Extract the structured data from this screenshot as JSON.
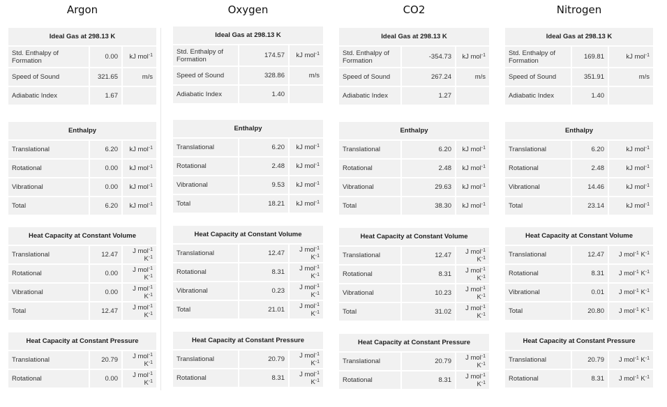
{
  "columns": [
    {
      "name": "Argon",
      "ideal_gas": {
        "title": "Ideal Gas at 298.13 K",
        "rows": [
          {
            "label": "Std. Enthalpy of Formation",
            "value": "0.00",
            "unit": "kJ mol",
            "unit_sup": "-1"
          },
          {
            "label": "Speed of Sound",
            "value": "321.65",
            "unit": "m/s"
          },
          {
            "label": "Adiabatic Index",
            "value": "1.67",
            "unit": ""
          }
        ]
      },
      "enthalpy": {
        "title": "Enthalpy",
        "rows": [
          {
            "label": "Translational",
            "value": "6.20"
          },
          {
            "label": "Rotational",
            "value": "0.00"
          },
          {
            "label": "Vibrational",
            "value": "0.00"
          },
          {
            "label": "Total",
            "value": "6.20"
          }
        ]
      },
      "cv": {
        "title": "Heat Capacity at Constant Volume",
        "rows": [
          {
            "label": "Translational",
            "value": "12.47"
          },
          {
            "label": "Rotational",
            "value": "0.00"
          },
          {
            "label": "Vibrational",
            "value": "0.00"
          },
          {
            "label": "Total",
            "value": "12.47"
          }
        ]
      },
      "cp": {
        "title": "Heat Capacity at Constant Pressure",
        "rows": [
          {
            "label": "Translational",
            "value": "20.79"
          },
          {
            "label": "Rotational",
            "value": "0.00"
          }
        ]
      }
    },
    {
      "name": "Oxygen",
      "ideal_gas": {
        "title": "Ideal Gas at 298.13 K",
        "rows": [
          {
            "label": "Std. Enthalpy of Formation",
            "value": "174.57",
            "unit": "kJ mol",
            "unit_sup": "-1"
          },
          {
            "label": "Speed of Sound",
            "value": "328.86",
            "unit": "m/s"
          },
          {
            "label": "Adiabatic Index",
            "value": "1.40",
            "unit": ""
          }
        ]
      },
      "enthalpy": {
        "title": "Enthalpy",
        "rows": [
          {
            "label": "Translational",
            "value": "6.20"
          },
          {
            "label": "Rotational",
            "value": "2.48"
          },
          {
            "label": "Vibrational",
            "value": "9.53"
          },
          {
            "label": "Total",
            "value": "18.21"
          }
        ]
      },
      "cv": {
        "title": "Heat Capacity at Constant Volume",
        "rows": [
          {
            "label": "Translational",
            "value": "12.47"
          },
          {
            "label": "Rotational",
            "value": "8.31"
          },
          {
            "label": "Vibrational",
            "value": "0.23"
          },
          {
            "label": "Total",
            "value": "21.01"
          }
        ]
      },
      "cp": {
        "title": "Heat Capacity at Constant Pressure",
        "rows": [
          {
            "label": "Translational",
            "value": "20.79"
          },
          {
            "label": "Rotational",
            "value": "8.31"
          }
        ]
      }
    },
    {
      "name": "CO2",
      "ideal_gas": {
        "title": "Ideal Gas at 298.13 K",
        "rows": [
          {
            "label": "Std. Enthalpy of Formation",
            "value": "-354.73",
            "unit": "kJ mol",
            "unit_sup": "-1"
          },
          {
            "label": "Speed of Sound",
            "value": "267.24",
            "unit": "m/s"
          },
          {
            "label": "Adiabatic Index",
            "value": "1.27",
            "unit": ""
          }
        ]
      },
      "enthalpy": {
        "title": "Enthalpy",
        "rows": [
          {
            "label": "Translational",
            "value": "6.20"
          },
          {
            "label": "Rotational",
            "value": "2.48"
          },
          {
            "label": "Vibrational",
            "value": "29.63"
          },
          {
            "label": "Total",
            "value": "38.30"
          }
        ]
      },
      "cv": {
        "title": "Heat Capacity at Constant Volume",
        "rows": [
          {
            "label": "Translational",
            "value": "12.47"
          },
          {
            "label": "Rotational",
            "value": "8.31"
          },
          {
            "label": "Vibrational",
            "value": "10.23"
          },
          {
            "label": "Total",
            "value": "31.02"
          }
        ]
      },
      "cp": {
        "title": "Heat Capacity at Constant Pressure",
        "rows": [
          {
            "label": "Translational",
            "value": "20.79"
          },
          {
            "label": "Rotational",
            "value": "8.31"
          }
        ]
      }
    },
    {
      "name": "Nitrogen",
      "ideal_gas": {
        "title": "Ideal Gas at 298.13 K",
        "rows": [
          {
            "label": "Std. Enthalpy of Formation",
            "value": "169.81",
            "unit": "kJ mol",
            "unit_sup": "-1"
          },
          {
            "label": "Speed of Sound",
            "value": "351.91",
            "unit": "m/s"
          },
          {
            "label": "Adiabatic Index",
            "value": "1.40",
            "unit": ""
          }
        ]
      },
      "enthalpy": {
        "title": "Enthalpy",
        "rows": [
          {
            "label": "Translational",
            "value": "6.20"
          },
          {
            "label": "Rotational",
            "value": "2.48"
          },
          {
            "label": "Vibrational",
            "value": "14.46"
          },
          {
            "label": "Total",
            "value": "23.14"
          }
        ]
      },
      "cv": {
        "title": "Heat Capacity at Constant Volume",
        "rows": [
          {
            "label": "Translational",
            "value": "12.47"
          },
          {
            "label": "Rotational",
            "value": "8.31"
          },
          {
            "label": "Vibrational",
            "value": "0.01"
          },
          {
            "label": "Total",
            "value": "20.80"
          }
        ]
      },
      "cp": {
        "title": "Heat Capacity at Constant Pressure",
        "rows": [
          {
            "label": "Translational",
            "value": "20.79"
          },
          {
            "label": "Rotational",
            "value": "8.31"
          }
        ]
      }
    }
  ],
  "units": {
    "enthalpy": {
      "base": "kJ mol",
      "sup": "-1"
    },
    "heat_capacity": {
      "a": "J mol",
      "a_sup": "-1",
      "b": " K",
      "b_sup": "-1"
    }
  }
}
